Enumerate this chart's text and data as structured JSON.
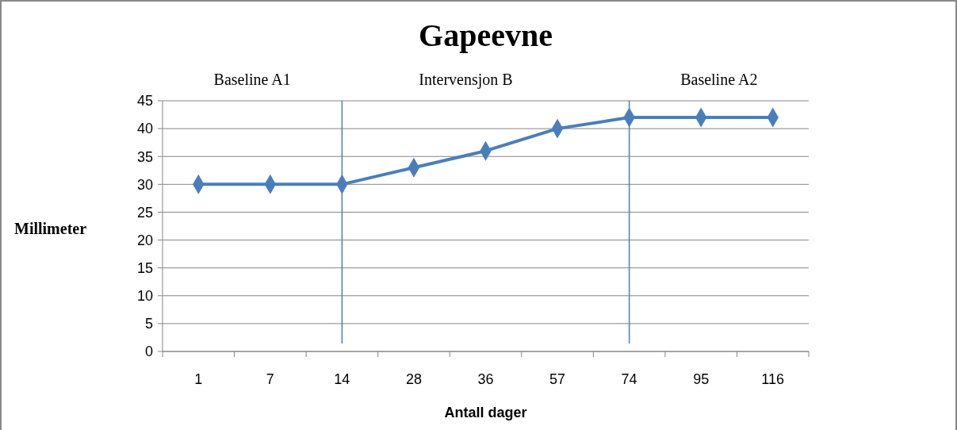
{
  "chart_data": {
    "type": "line",
    "title": "Gapeevne",
    "xlabel": "Antall dager",
    "ylabel": "Millimeter",
    "categories": [
      "1",
      "7",
      "14",
      "28",
      "36",
      "57",
      "74",
      "95",
      "116"
    ],
    "series": [
      {
        "color": "#4a7ebb",
        "values": [
          30,
          30,
          30,
          33,
          36,
          40,
          42,
          42,
          42
        ]
      }
    ],
    "ylim": [
      0,
      45
    ],
    "yticks": [
      0,
      5,
      10,
      15,
      20,
      25,
      30,
      35,
      40,
      45
    ],
    "grid": "y",
    "marker": "diamond",
    "line_style": "solid",
    "ref_lines": [
      {
        "axis": "x",
        "value": "14",
        "color": "#4a7ebb"
      },
      {
        "axis": "x",
        "value": "74",
        "color": "#4a7ebb"
      }
    ],
    "annotations": [
      "Baseline A1",
      "Intervensjon B",
      "Baseline A2"
    ]
  }
}
